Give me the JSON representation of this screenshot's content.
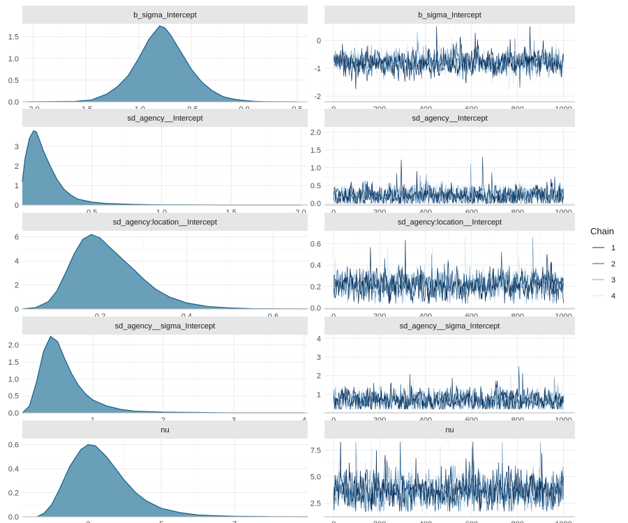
{
  "chart_data": [
    {
      "type": "area",
      "title": "b_sigma_Intercept",
      "xlabel": "",
      "ylabel": "",
      "xlim": [
        -2.1,
        0.6
      ],
      "ylim": [
        0,
        1.8
      ],
      "x_ticks": [
        -2.0,
        -1.5,
        -1.0,
        -0.5,
        0.0,
        0.5
      ],
      "x_tick_labels": [
        "-2.0",
        "-1.5",
        "-1.0",
        "-0.5",
        "0.0",
        "0.5"
      ],
      "y_ticks": [
        0.0,
        0.5,
        1.0,
        1.5
      ],
      "y_tick_labels": [
        "0.0",
        "0.5",
        "1.0",
        "1.5"
      ],
      "density": {
        "x": [
          -2.05,
          -1.6,
          -1.45,
          -1.3,
          -1.2,
          -1.1,
          -1.0,
          -0.9,
          -0.85,
          -0.8,
          -0.75,
          -0.7,
          -0.6,
          -0.5,
          -0.4,
          -0.3,
          -0.2,
          -0.1,
          0.0,
          0.1,
          0.2,
          0.5
        ],
        "y": [
          0,
          0.01,
          0.04,
          0.18,
          0.35,
          0.6,
          1.0,
          1.45,
          1.6,
          1.75,
          1.7,
          1.55,
          1.15,
          0.75,
          0.45,
          0.25,
          0.12,
          0.06,
          0.03,
          0.01,
          0.005,
          0
        ]
      },
      "fill_color": "#6a9fba",
      "line_color": "#175e87"
    },
    {
      "type": "line",
      "title": "b_sigma_Intercept",
      "xlabel": "",
      "ylabel": "",
      "xlim": [
        -40,
        1050
      ],
      "ylim": [
        -2.2,
        0.6
      ],
      "x_ticks": [
        0,
        200,
        400,
        600,
        800,
        1000
      ],
      "x_tick_labels": [
        "0",
        "200",
        "400",
        "600",
        "800",
        "1000"
      ],
      "y_ticks": [
        -2,
        -1,
        0
      ],
      "y_tick_labels": [
        "-2",
        "-1",
        "0"
      ],
      "trace": {
        "center": -0.8,
        "spread": 0.22,
        "low": -2.05,
        "high": 0.5
      }
    },
    {
      "type": "area",
      "title": "sd_agency__Intercept",
      "xlabel": "",
      "ylabel": "",
      "xlim": [
        0,
        2.05
      ],
      "ylim": [
        0,
        4.0
      ],
      "x_ticks": [
        0.5,
        1.0,
        1.5,
        2.0
      ],
      "x_tick_labels": [
        "0.5",
        "1.0",
        "1.5",
        "2.0"
      ],
      "y_ticks": [
        0,
        1,
        2,
        3
      ],
      "y_tick_labels": [
        "0",
        "1",
        "2",
        "3"
      ],
      "density": {
        "x": [
          0,
          0.02,
          0.05,
          0.08,
          0.1,
          0.12,
          0.15,
          0.2,
          0.25,
          0.3,
          0.35,
          0.4,
          0.5,
          0.6,
          0.8,
          1.0,
          1.5,
          2.0
        ],
        "y": [
          1.2,
          2.4,
          3.4,
          3.8,
          3.75,
          3.4,
          2.8,
          2.0,
          1.3,
          0.8,
          0.5,
          0.3,
          0.15,
          0.08,
          0.03,
          0.01,
          0.0,
          0
        ]
      },
      "fill_color": "#6a9fba",
      "line_color": "#175e87"
    },
    {
      "type": "line",
      "title": "sd_agency__Intercept",
      "xlabel": "",
      "ylabel": "",
      "xlim": [
        -40,
        1050
      ],
      "ylim": [
        -0.05,
        2.15
      ],
      "x_ticks": [
        0,
        200,
        400,
        600,
        800,
        1000
      ],
      "x_tick_labels": [
        "0",
        "200",
        "400",
        "600",
        "800",
        "1000"
      ],
      "y_ticks": [
        0.0,
        0.5,
        1.0,
        1.5,
        2.0
      ],
      "y_tick_labels": [
        "0.0",
        "0.5",
        "1.0",
        "1.5",
        "2.0"
      ],
      "trace": {
        "center": 0.22,
        "spread": 0.14,
        "low": 0.0,
        "high": 2.1
      }
    },
    {
      "type": "area",
      "title": "sd_agency:location__Intercept",
      "xlabel": "",
      "ylabel": "",
      "xlim": [
        0.02,
        0.68
      ],
      "ylim": [
        0,
        6.5
      ],
      "x_ticks": [
        0.2,
        0.4,
        0.6
      ],
      "x_tick_labels": [
        "0.2",
        "0.4",
        "0.6"
      ],
      "y_ticks": [
        0,
        2,
        4,
        6
      ],
      "y_tick_labels": [
        "0",
        "2",
        "4",
        "6"
      ],
      "density": {
        "x": [
          0.02,
          0.05,
          0.08,
          0.1,
          0.12,
          0.14,
          0.16,
          0.18,
          0.2,
          0.22,
          0.25,
          0.28,
          0.3,
          0.33,
          0.36,
          0.4,
          0.45,
          0.5,
          0.55,
          0.68
        ],
        "y": [
          0,
          0.1,
          0.6,
          1.5,
          3.0,
          4.6,
          5.8,
          6.2,
          5.9,
          5.2,
          4.2,
          3.2,
          2.5,
          1.6,
          1.0,
          0.5,
          0.2,
          0.08,
          0.02,
          0
        ]
      },
      "fill_color": "#6a9fba",
      "line_color": "#175e87"
    },
    {
      "type": "line",
      "title": "sd_agency:location__Intercept",
      "xlabel": "",
      "ylabel": "",
      "xlim": [
        -40,
        1050
      ],
      "ylim": [
        -0.01,
        0.72
      ],
      "x_ticks": [
        0,
        200,
        400,
        600,
        800,
        1000
      ],
      "x_tick_labels": [
        "0",
        "200",
        "400",
        "600",
        "800",
        "1000"
      ],
      "y_ticks": [
        0.0,
        0.2,
        0.4,
        0.6
      ],
      "y_tick_labels": [
        "0.0",
        "0.2",
        "0.4",
        "0.6"
      ],
      "trace": {
        "center": 0.21,
        "spread": 0.07,
        "low": 0.04,
        "high": 0.66
      }
    },
    {
      "type": "area",
      "title": "sd_agency__sigma_Intercept",
      "xlabel": "",
      "ylabel": "",
      "xlim": [
        0,
        4.05
      ],
      "ylim": [
        0,
        2.3
      ],
      "x_ticks": [
        1,
        2,
        3,
        4
      ],
      "x_tick_labels": [
        "1",
        "2",
        "3",
        "4"
      ],
      "y_ticks": [
        0.0,
        0.5,
        1.0,
        1.5,
        2.0
      ],
      "y_tick_labels": [
        "0.0",
        "0.5",
        "1.0",
        "1.5",
        "2.0"
      ],
      "density": {
        "x": [
          0,
          0.1,
          0.2,
          0.3,
          0.4,
          0.5,
          0.6,
          0.7,
          0.8,
          0.9,
          1.0,
          1.2,
          1.4,
          1.6,
          2.0,
          2.5,
          3.0,
          4.0
        ],
        "y": [
          0,
          0.2,
          0.9,
          1.8,
          2.25,
          2.1,
          1.6,
          1.15,
          0.8,
          0.55,
          0.38,
          0.2,
          0.1,
          0.05,
          0.02,
          0.01,
          0.0,
          0
        ]
      },
      "fill_color": "#6a9fba",
      "line_color": "#175e87"
    },
    {
      "type": "line",
      "title": "sd_agency__sigma_Intercept",
      "xlabel": "",
      "ylabel": "",
      "xlim": [
        -40,
        1050
      ],
      "ylim": [
        0.0,
        4.2
      ],
      "x_ticks": [
        0,
        200,
        400,
        600,
        800,
        1000
      ],
      "x_tick_labels": [
        "0",
        "200",
        "400",
        "600",
        "800",
        "1000"
      ],
      "y_ticks": [
        1,
        2,
        3,
        4
      ],
      "y_tick_labels": [
        "1",
        "2",
        "3",
        "4"
      ],
      "trace": {
        "center": 0.65,
        "spread": 0.3,
        "low": 0.2,
        "high": 4.0
      }
    },
    {
      "type": "area",
      "title": "nu",
      "xlabel": "",
      "ylabel": "",
      "xlim": [
        1.2,
        9.0
      ],
      "ylim": [
        0,
        0.65
      ],
      "x_ticks": [
        3,
        5,
        7
      ],
      "x_tick_labels": [
        "3",
        "5",
        "7"
      ],
      "y_ticks": [
        0.0,
        0.2,
        0.4,
        0.6
      ],
      "y_tick_labels": [
        "0.0",
        "0.2",
        "0.4",
        "0.6"
      ],
      "density": {
        "x": [
          1.6,
          1.8,
          2.0,
          2.2,
          2.5,
          2.8,
          3.0,
          3.2,
          3.5,
          3.8,
          4.0,
          4.3,
          4.6,
          5.0,
          5.5,
          6.0,
          6.5,
          7.0,
          8.0,
          9.0
        ],
        "y": [
          0,
          0.03,
          0.1,
          0.22,
          0.42,
          0.56,
          0.6,
          0.59,
          0.5,
          0.38,
          0.3,
          0.2,
          0.13,
          0.07,
          0.035,
          0.015,
          0.008,
          0.004,
          0.001,
          0
        ]
      },
      "fill_color": "#6a9fba",
      "line_color": "#175e87"
    },
    {
      "type": "line",
      "title": "nu",
      "xlabel": "",
      "ylabel": "",
      "xlim": [
        -40,
        1050
      ],
      "ylim": [
        1.2,
        8.6
      ],
      "x_ticks": [
        0,
        200,
        400,
        600,
        800,
        1000
      ],
      "x_tick_labels": [
        "0",
        "200",
        "400",
        "600",
        "800",
        "1000"
      ],
      "y_ticks": [
        2.5,
        5.0,
        7.5
      ],
      "y_tick_labels": [
        "2.5",
        "5.0",
        "7.5"
      ],
      "trace": {
        "center": 3.6,
        "spread": 0.9,
        "low": 1.7,
        "high": 8.3
      }
    }
  ],
  "legend": {
    "title": "Chain",
    "items": [
      {
        "label": "1",
        "color": "#0a2f57"
      },
      {
        "label": "2",
        "color": "#1f5a8c"
      },
      {
        "label": "3",
        "color": "#7ea6c8"
      },
      {
        "label": "4",
        "color": "#d6e6f2"
      }
    ]
  },
  "colors": {
    "strip_bg": "#e6e6e6",
    "grid_major": "#ebebeb",
    "grid_minor": "#f5f5f5",
    "axis_line": "#b3b3b3"
  }
}
